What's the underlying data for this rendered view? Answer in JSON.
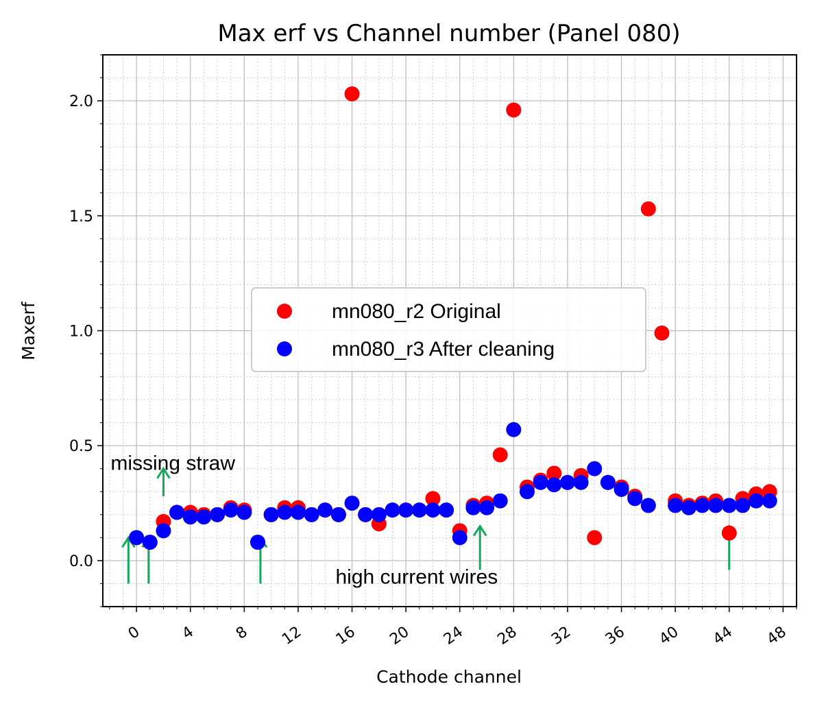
{
  "chart_data": {
    "type": "scatter",
    "title": "Max erf vs Channel number (Panel 080)",
    "xlabel": "Cathode channel",
    "ylabel": "Maxerf",
    "xlim": [
      -2.5,
      49
    ],
    "ylim": [
      -0.2,
      2.2
    ],
    "xticks": [
      0,
      4,
      8,
      12,
      16,
      20,
      24,
      28,
      32,
      36,
      40,
      44,
      48
    ],
    "yticks": [
      0.0,
      0.5,
      1.0,
      1.5,
      2.0
    ],
    "grid": true,
    "legend_position": "center",
    "series": [
      {
        "name": "mn080_r2 Original",
        "color": "#ff0000",
        "x": [
          0,
          1,
          2,
          3,
          4,
          5,
          6,
          7,
          8,
          9,
          10,
          11,
          12,
          13,
          14,
          15,
          16,
          17,
          18,
          19,
          20,
          21,
          22,
          23,
          24,
          25,
          26,
          27,
          28,
          29,
          30,
          31,
          32,
          33,
          34,
          35,
          36,
          37,
          38,
          39,
          40,
          41,
          42,
          43,
          44,
          45,
          46,
          47
        ],
        "y": [
          0.1,
          0.08,
          0.17,
          0.21,
          0.21,
          0.2,
          0.2,
          0.23,
          0.22,
          0.08,
          0.2,
          0.23,
          0.23,
          0.2,
          0.22,
          0.2,
          2.03,
          0.2,
          0.16,
          0.22,
          0.22,
          0.22,
          0.27,
          0.22,
          0.13,
          0.24,
          0.25,
          0.46,
          1.96,
          0.32,
          0.35,
          0.38,
          0.34,
          0.37,
          0.1,
          0.34,
          0.32,
          0.28,
          1.53,
          0.99,
          0.26,
          0.24,
          0.25,
          0.26,
          0.12,
          0.27,
          0.29,
          0.3
        ]
      },
      {
        "name": "mn080_r3 After cleaning",
        "color": "#0000ff",
        "x": [
          0,
          1,
          2,
          3,
          4,
          5,
          6,
          7,
          8,
          9,
          10,
          11,
          12,
          13,
          14,
          15,
          16,
          17,
          18,
          19,
          20,
          21,
          22,
          23,
          24,
          25,
          26,
          27,
          28,
          29,
          30,
          31,
          32,
          33,
          34,
          35,
          36,
          37,
          38,
          40,
          41,
          42,
          43,
          44,
          45,
          46,
          47
        ],
        "y": [
          0.1,
          0.08,
          0.13,
          0.21,
          0.19,
          0.19,
          0.2,
          0.22,
          0.21,
          0.08,
          0.2,
          0.21,
          0.21,
          0.2,
          0.22,
          0.2,
          0.25,
          0.2,
          0.2,
          0.22,
          0.22,
          0.22,
          0.22,
          0.22,
          0.1,
          0.23,
          0.23,
          0.26,
          0.57,
          0.3,
          0.34,
          0.33,
          0.34,
          0.34,
          0.4,
          0.34,
          0.31,
          0.27,
          0.24,
          0.24,
          0.23,
          0.24,
          0.24,
          0.24,
          0.24,
          0.26,
          0.26
        ]
      }
    ],
    "annotations": [
      {
        "text": "missing straw",
        "x": 2.7,
        "y": 0.395
      },
      {
        "text": "high current wires",
        "x": 20.8,
        "y": -0.1
      }
    ],
    "arrows": [
      {
        "x": -0.6,
        "y_from": -0.1,
        "y_to": 0.1
      },
      {
        "x": 0.9,
        "y_from": -0.1,
        "y_to": 0.1
      },
      {
        "x": 2.0,
        "y_from": 0.28,
        "y_to": 0.4
      },
      {
        "x": 9.2,
        "y_from": -0.1,
        "y_to": 0.1
      },
      {
        "x": 25.5,
        "y_from": -0.04,
        "y_to": 0.15
      },
      {
        "x": 44.0,
        "y_from": -0.04,
        "y_to": 0.15
      }
    ],
    "arrow_color": "#11a85a"
  }
}
